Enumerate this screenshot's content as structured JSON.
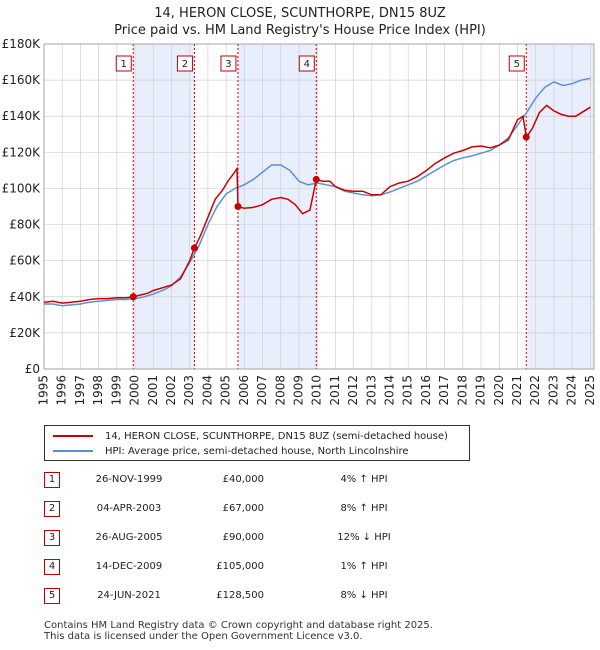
{
  "title_line1": "14, HERON CLOSE, SCUNTHORPE, DN15 8UZ",
  "title_line2": "Price paid vs. HM Land Registry's House Price Index (HPI)",
  "colors": {
    "property": "#cc0000",
    "hpi": "#5b8fd6",
    "band": "#e8eefb",
    "grid": "#d0d0d0",
    "marker_box": "#c00000"
  },
  "legend": {
    "property_label": "14, HERON CLOSE, SCUNTHORPE, DN15 8UZ (semi-detached house)",
    "hpi_label": "HPI: Average price, semi-detached house, North Lincolnshire"
  },
  "sales": [
    {
      "num": "1",
      "date": "26-NOV-1999",
      "price": "£40,000",
      "hpi": "4% ↑ HPI"
    },
    {
      "num": "2",
      "date": "04-APR-2003",
      "price": "£67,000",
      "hpi": "8% ↑ HPI"
    },
    {
      "num": "3",
      "date": "26-AUG-2005",
      "price": "£90,000",
      "hpi": "12% ↓ HPI"
    },
    {
      "num": "4",
      "date": "14-DEC-2009",
      "price": "£105,000",
      "hpi": "1% ↑ HPI"
    },
    {
      "num": "5",
      "date": "24-JUN-2021",
      "price": "£128,500",
      "hpi": "8% ↓ HPI"
    }
  ],
  "footer_line1": "Contains HM Land Registry data © Crown copyright and database right 2025.",
  "footer_line2": "This data is licensed under the Open Government Licence v3.0.",
  "chart_data": {
    "type": "line",
    "title": "Price paid vs. HM Land Registry's House Price Index (HPI)",
    "xlim": [
      1995,
      2025.2
    ],
    "ylim": [
      0,
      180000
    ],
    "x_ticks": [
      1995,
      1996,
      1997,
      1998,
      1999,
      2000,
      2001,
      2002,
      2003,
      2004,
      2005,
      2006,
      2007,
      2008,
      2009,
      2010,
      2011,
      2012,
      2013,
      2014,
      2015,
      2016,
      2017,
      2018,
      2019,
      2020,
      2021,
      2022,
      2023,
      2024,
      2025
    ],
    "y_ticks": [
      0,
      20000,
      40000,
      60000,
      80000,
      100000,
      120000,
      140000,
      160000,
      180000
    ],
    "y_tick_labels": [
      "£0",
      "£20K",
      "£40K",
      "£60K",
      "£80K",
      "£100K",
      "£120K",
      "£140K",
      "£160K",
      "£180K"
    ],
    "sale_markers": [
      {
        "label": "1",
        "x": 1999.9,
        "y": 40000
      },
      {
        "label": "2",
        "x": 2003.26,
        "y": 67000
      },
      {
        "label": "3",
        "x": 2005.65,
        "y": 90000
      },
      {
        "label": "4",
        "x": 2009.95,
        "y": 105000
      },
      {
        "label": "5",
        "x": 2021.48,
        "y": 128500
      }
    ],
    "shaded_spans": [
      [
        1999.9,
        2003.26
      ],
      [
        2005.65,
        2009.95
      ],
      [
        2021.48,
        2025.2
      ]
    ],
    "series": [
      {
        "name": "14, HERON CLOSE, SCUNTHORPE, DN15 8UZ (semi-detached house)",
        "x": [
          1995,
          1995.5,
          1996,
          1996.5,
          1997,
          1997.5,
          1998,
          1998.5,
          1999,
          1999.5,
          1999.9,
          2000.3,
          2000.7,
          2001,
          2001.5,
          2002,
          2002.5,
          2003,
          2003.26,
          2003.6,
          2004,
          2004.4,
          2004.8,
          2005.1,
          2005.4,
          2005.6,
          2005.65,
          2006,
          2006.5,
          2007,
          2007.5,
          2008,
          2008.4,
          2008.8,
          2009.2,
          2009.6,
          2009.95,
          2010.3,
          2010.7,
          2011,
          2011.5,
          2012,
          2012.5,
          2013,
          2013.5,
          2014,
          2014.5,
          2015,
          2015.5,
          2016,
          2016.5,
          2017,
          2017.5,
          2018,
          2018.5,
          2019,
          2019.5,
          2020,
          2020.5,
          2021,
          2021.3,
          2021.48,
          2021.8,
          2022.2,
          2022.6,
          2023,
          2023.4,
          2023.8,
          2024.2,
          2024.6,
          2025
        ],
        "values": [
          37000,
          37500,
          36500,
          37000,
          37500,
          38500,
          39000,
          39000,
          39500,
          39500,
          40000,
          41000,
          42000,
          43500,
          45000,
          46500,
          50000,
          60000,
          67000,
          74000,
          84000,
          94000,
          99000,
          104000,
          108000,
          111000,
          90000,
          89000,
          89500,
          91000,
          94000,
          95000,
          94000,
          91000,
          86000,
          88000,
          105000,
          104000,
          104000,
          101000,
          99000,
          98500,
          98500,
          96500,
          96500,
          101000,
          103000,
          104000,
          106500,
          110000,
          114000,
          117000,
          119500,
          121000,
          123000,
          123500,
          122500,
          124000,
          127000,
          138000,
          140000,
          128500,
          133000,
          142000,
          146000,
          143000,
          141000,
          140000,
          140000,
          142500,
          145000
        ]
      },
      {
        "name": "HPI: Average price, semi-detached house, North Lincolnshire",
        "x": [
          1995,
          1995.5,
          1996,
          1996.5,
          1997,
          1997.5,
          1998,
          1998.5,
          1999,
          1999.5,
          2000,
          2000.5,
          2001,
          2001.5,
          2002,
          2002.5,
          2003,
          2003.5,
          2004,
          2004.5,
          2005,
          2005.5,
          2006,
          2006.5,
          2007,
          2007.5,
          2008,
          2008.5,
          2009,
          2009.5,
          2010,
          2010.5,
          2011,
          2011.5,
          2012,
          2012.5,
          2013,
          2013.5,
          2014,
          2014.5,
          2015,
          2015.5,
          2016,
          2016.5,
          2017,
          2017.5,
          2018,
          2018.5,
          2019,
          2019.5,
          2020,
          2020.5,
          2021,
          2021.5,
          2022,
          2022.5,
          2023,
          2023.5,
          2024,
          2024.5,
          2025
        ],
        "values": [
          36000,
          36000,
          35000,
          35500,
          36000,
          37000,
          37500,
          38000,
          38500,
          38500,
          39000,
          40000,
          41500,
          43500,
          46000,
          51000,
          59000,
          68000,
          80000,
          90000,
          97000,
          100000,
          102000,
          105000,
          109000,
          113000,
          113000,
          110000,
          104000,
          102000,
          103000,
          102000,
          101000,
          98500,
          97500,
          96500,
          96000,
          96500,
          98000,
          100000,
          102000,
          104000,
          107000,
          110000,
          113000,
          115500,
          117000,
          118000,
          119500,
          121000,
          124000,
          128000,
          135000,
          142000,
          150000,
          156000,
          159000,
          157000,
          158000,
          160000,
          161000
        ]
      }
    ]
  }
}
